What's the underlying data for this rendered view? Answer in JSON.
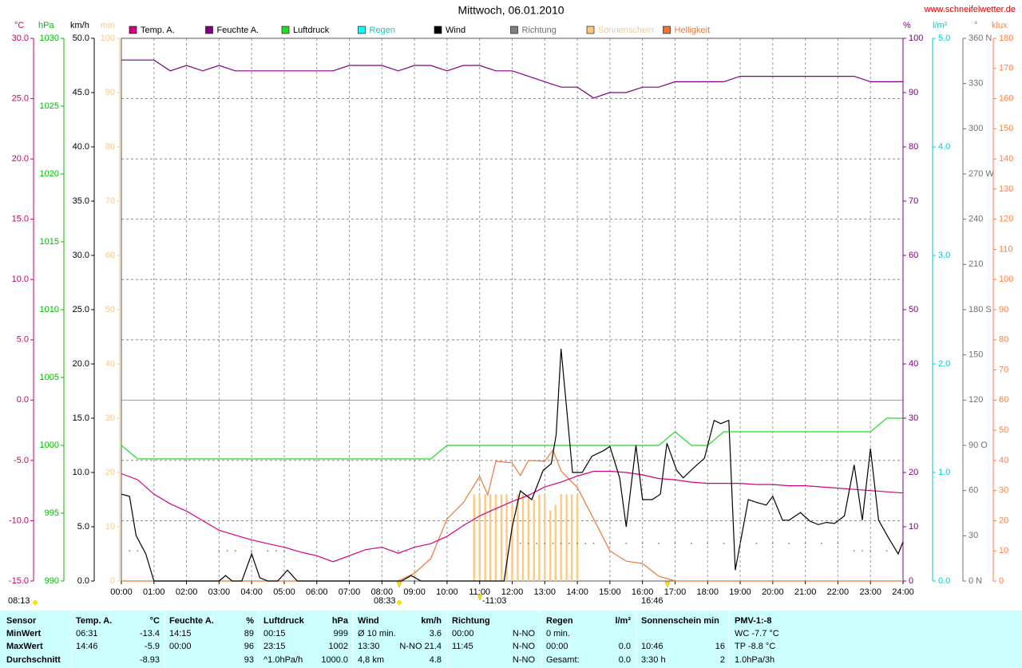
{
  "chart_data": {
    "type": "line",
    "title": "Mittwoch, 06.01.2010",
    "source": "www.schneifelwetter.de",
    "xlim": [
      0,
      24
    ],
    "xticks": [
      {
        "value": 0,
        "label": "00:00"
      },
      {
        "value": 1,
        "label": "01:00"
      },
      {
        "value": 2,
        "label": "02:00"
      },
      {
        "value": 3,
        "label": "03:00"
      },
      {
        "value": 4,
        "label": "04:00"
      },
      {
        "value": 5,
        "label": "05:00"
      },
      {
        "value": 6,
        "label": "06:00"
      },
      {
        "value": 7,
        "label": "07:00"
      },
      {
        "value": 8,
        "label": "08:00"
      },
      {
        "value": 9,
        "label": "09:00"
      },
      {
        "value": 10,
        "label": "10:00"
      },
      {
        "value": 11,
        "label": "11:00"
      },
      {
        "value": 12,
        "label": "12:00"
      },
      {
        "value": 13,
        "label": "13:00"
      },
      {
        "value": 14,
        "label": "14:00"
      },
      {
        "value": 15,
        "label": "15:00"
      },
      {
        "value": 16,
        "label": "16:00"
      },
      {
        "value": 17,
        "label": "17:00"
      },
      {
        "value": 18,
        "label": "18:00"
      },
      {
        "value": 19,
        "label": "19:00"
      },
      {
        "value": 20,
        "label": "20:00"
      },
      {
        "value": 21,
        "label": "21:00"
      },
      {
        "value": 22,
        "label": "22:00"
      },
      {
        "value": 23,
        "label": "23:00"
      },
      {
        "value": 24,
        "label": "24:00"
      }
    ],
    "grid": true,
    "grid_axis": 0,
    "axes": [
      {
        "unit": "°C",
        "color": "#cc0066",
        "lim": [
          -15,
          30
        ],
        "ticks": [
          {
            "value": -15,
            "label": "-15.0"
          },
          {
            "value": -10,
            "label": "-10.0"
          },
          {
            "value": -5,
            "label": "-5.0"
          },
          {
            "value": 0,
            "label": "0.0"
          },
          {
            "value": 5,
            "label": "5.0"
          },
          {
            "value": 10,
            "label": "10.0"
          },
          {
            "value": 15,
            "label": "15.0"
          },
          {
            "value": 20,
            "label": "20.0"
          },
          {
            "value": 25,
            "label": "25.0"
          },
          {
            "value": 30,
            "label": "30.0"
          }
        ]
      },
      {
        "unit": "hPa",
        "color": "#00bb00",
        "lim": [
          990,
          1030
        ],
        "ticks": [
          990,
          995,
          1000,
          1005,
          1010,
          1015,
          1020,
          1025,
          1030
        ]
      },
      {
        "unit": "km/h",
        "color": "#000000",
        "lim": [
          0,
          50
        ],
        "ticks": [
          {
            "value": 0,
            "label": "0.0"
          },
          {
            "value": 5,
            "label": "5.0"
          },
          {
            "value": 10,
            "label": "10.0"
          },
          {
            "value": 15,
            "label": "15.0"
          },
          {
            "value": 20,
            "label": "20.0"
          },
          {
            "value": 25,
            "label": "25.0"
          },
          {
            "value": 30,
            "label": "30.0"
          },
          {
            "value": 35,
            "label": "35.0"
          },
          {
            "value": 40,
            "label": "40.0"
          },
          {
            "value": 45,
            "label": "45.0"
          },
          {
            "value": 50,
            "label": "50.0"
          }
        ]
      },
      {
        "unit": "min",
        "color": "#f5c890",
        "lim": [
          0,
          100
        ],
        "ticks": [
          0,
          10,
          20,
          30,
          40,
          50,
          60,
          70,
          80,
          90,
          100
        ]
      },
      {
        "unit": "%",
        "color": "#800080",
        "lim": [
          0,
          100
        ],
        "ticks": [
          0,
          10,
          20,
          30,
          40,
          50,
          60,
          70,
          80,
          90,
          100
        ]
      },
      {
        "unit": "l/m²",
        "color": "#00cccc",
        "lim": [
          0,
          5
        ],
        "ticks": [
          {
            "value": 0,
            "label": "0.0"
          },
          {
            "value": 1,
            "label": "1.0"
          },
          {
            "value": 2,
            "label": "2.0"
          },
          {
            "value": 3,
            "label": "3.0"
          },
          {
            "value": 4,
            "label": "4.0"
          },
          {
            "value": 5,
            "label": "5.0"
          }
        ]
      },
      {
        "unit": "°",
        "color": "#707070",
        "lim": [
          0,
          360
        ],
        "ticks": [
          {
            "value": 0,
            "label": "0 N"
          },
          30,
          60,
          {
            "value": 90,
            "label": "90 O"
          },
          120,
          150,
          {
            "value": 180,
            "label": "180 S"
          },
          210,
          240,
          {
            "value": 270,
            "label": "270 W"
          },
          300,
          330,
          {
            "value": 360,
            "label": "360 N"
          }
        ]
      },
      {
        "unit": "klux",
        "color": "#ff8040",
        "lim": [
          0,
          180
        ],
        "ticks": [
          0,
          10,
          20,
          30,
          40,
          50,
          60,
          70,
          80,
          90,
          100,
          110,
          120,
          130,
          140,
          150,
          160,
          170,
          180
        ]
      }
    ],
    "x": [
      0,
      0.5,
      1,
      1.5,
      2,
      2.5,
      3,
      3.5,
      4,
      4.5,
      5,
      5.5,
      6,
      6.5,
      7,
      7.5,
      8,
      8.5,
      9,
      9.5,
      10,
      10.5,
      11,
      11.5,
      12,
      12.5,
      13,
      13.5,
      14,
      14.5,
      15,
      15.5,
      16,
      16.5,
      17,
      17.5,
      18,
      18.5,
      19,
      19.5,
      20,
      20.5,
      21,
      21.5,
      22,
      22.5,
      23,
      23.5,
      24
    ],
    "series": [
      {
        "name": "Temp. A.",
        "color": "#d4007a",
        "legend_text_color": "#000000",
        "type": "line",
        "axis": 0,
        "values": [
          -6.1,
          -6.6,
          -7.8,
          -8.6,
          -9.2,
          -10.0,
          -10.8,
          -11.2,
          -11.6,
          -11.9,
          -12.2,
          -12.6,
          -12.9,
          -13.4,
          -12.9,
          -12.4,
          -12.2,
          -12.7,
          -12.2,
          -11.9,
          -11.3,
          -10.4,
          -9.6,
          -9.0,
          -8.4,
          -7.9,
          -7.2,
          -6.8,
          -6.3,
          -5.9,
          -5.9,
          -6.0,
          -6.2,
          -6.5,
          -6.6,
          -6.8,
          -6.9,
          -6.9,
          -6.9,
          -7.0,
          -7.0,
          -7.1,
          -7.1,
          -7.2,
          -7.3,
          -7.4,
          -7.5,
          -7.6,
          -7.7
        ]
      },
      {
        "name": "Feuchte A.",
        "color": "#800080",
        "legend_text_color": "#000000",
        "type": "line",
        "axis": 4,
        "values": [
          96,
          96,
          96,
          94,
          95,
          94,
          95,
          94,
          94,
          94,
          94,
          94,
          94,
          94,
          95,
          95,
          95,
          94,
          95,
          95,
          94,
          95,
          95,
          94,
          94,
          93,
          92,
          91,
          91,
          89,
          90,
          90,
          91,
          91,
          92,
          92,
          92,
          92,
          93,
          93,
          93,
          93,
          93,
          93,
          93,
          93,
          92,
          92,
          92
        ]
      },
      {
        "name": "Luftdruck",
        "color": "#22dd22",
        "legend_text_color": "#000000",
        "type": "line",
        "axis": 1,
        "values": [
          1000,
          999,
          999,
          999,
          999,
          999,
          999,
          999,
          999,
          999,
          999,
          999,
          999,
          999,
          999,
          999,
          999,
          999,
          999,
          999,
          1000,
          1000,
          1000,
          1000,
          1000,
          1000,
          1000,
          1000,
          1000,
          1000,
          1000,
          1000,
          1000,
          1000,
          1001,
          1000,
          1000,
          1001,
          1001,
          1001,
          1001,
          1001,
          1001,
          1001,
          1001,
          1001,
          1001,
          1002,
          1002
        ]
      },
      {
        "name": "Regen",
        "color": "#00ffff",
        "legend_text_color": "#00cccc",
        "type": "line",
        "axis": 5,
        "x": [],
        "values": []
      },
      {
        "name": "Wind",
        "color": "#000000",
        "legend_text_color": "#000000",
        "type": "line",
        "axis": 2,
        "x": [
          0,
          0.25,
          0.45,
          0.75,
          1.0,
          3.0,
          3.2,
          3.4,
          3.7,
          4.0,
          4.25,
          4.5,
          4.8,
          5.1,
          5.4,
          8.6,
          8.9,
          9.2,
          11.75,
          12.0,
          12.25,
          12.6,
          12.95,
          13.2,
          13.35,
          13.5,
          13.7,
          13.85,
          14.15,
          14.45,
          14.8,
          15.0,
          15.3,
          15.5,
          15.8,
          16.0,
          16.3,
          16.55,
          16.75,
          17.05,
          17.25,
          17.6,
          17.9,
          18.2,
          18.4,
          18.65,
          18.85,
          19.25,
          19.55,
          19.8,
          20.0,
          20.3,
          20.5,
          20.85,
          21.15,
          21.4,
          21.65,
          21.9,
          22.2,
          22.5,
          22.75,
          23.0,
          23.25,
          23.55,
          23.85,
          24.0
        ],
        "values": [
          8.0,
          7.8,
          4.2,
          2.5,
          0,
          0,
          0.5,
          0,
          0,
          2.5,
          0.3,
          0,
          0,
          1.0,
          0,
          0,
          0.5,
          0,
          0,
          5.0,
          8.3,
          7.5,
          10.2,
          10.8,
          13.5,
          21.4,
          15,
          10,
          10,
          11.5,
          12,
          12.4,
          9.5,
          5.0,
          12.5,
          7.5,
          7.5,
          8,
          12.7,
          10.2,
          9.5,
          10.5,
          11.3,
          14.8,
          14.5,
          14.8,
          1.0,
          7.5,
          7.2,
          7,
          7.8,
          5.6,
          5.6,
          6.3,
          5.5,
          5.2,
          5.4,
          5.3,
          6.0,
          10.7,
          5.6,
          12.2,
          5.6,
          4.0,
          2.5,
          3.6
        ]
      },
      {
        "name": "Richtung",
        "color": "#808080",
        "legend_text_color": "#707070",
        "type": "dots",
        "axis": 6,
        "x": [
          0.25,
          0.5,
          3.0,
          3.25,
          3.5,
          4.0,
          4.5,
          4.75,
          5.0,
          8.5,
          8.75,
          12.25,
          12.5,
          12.75,
          13.0,
          13.25,
          13.5,
          13.75,
          14.0,
          14.25,
          14.5,
          15.0,
          15.5,
          16.0,
          16.5,
          17.0,
          17.5,
          18.0,
          18.5,
          19.0,
          19.5,
          20.0,
          20.5,
          21.0,
          21.5,
          22.0,
          22.5,
          22.75,
          23.0,
          23.5
        ],
        "values": [
          20,
          20,
          20,
          20,
          20,
          20,
          20,
          20,
          20,
          20,
          20,
          25,
          25,
          25,
          25,
          25,
          25,
          25,
          25,
          25,
          25,
          25,
          25,
          25,
          25,
          25,
          25,
          25,
          25,
          25,
          25,
          25,
          25,
          25,
          25,
          25,
          20,
          20,
          20,
          20
        ]
      },
      {
        "name": "Sonnenschein",
        "color": "#ffc880",
        "legend_text_color": "#f5c890",
        "type": "bar",
        "axis": 3,
        "x": [
          10.83,
          11.0,
          11.17,
          11.33,
          11.5,
          11.67,
          11.83,
          12.0,
          12.17,
          12.33,
          12.5,
          12.67,
          12.83,
          13.0,
          13.17,
          13.33,
          13.5,
          13.67,
          13.83,
          14.0
        ],
        "values": [
          16,
          16,
          16,
          16,
          16,
          16,
          16,
          14,
          16,
          16,
          16,
          15,
          16,
          16,
          13,
          14,
          16,
          16,
          16,
          16
        ]
      },
      {
        "name": "Helligkeit",
        "color": "#ee7733",
        "legend_text_color": "#ee7733",
        "type": "line",
        "axis": 7,
        "x": [
          0,
          8.5,
          9.0,
          9.5,
          10.0,
          10.5,
          11.0,
          11.25,
          11.5,
          12.0,
          12.25,
          12.5,
          13.0,
          13.25,
          13.5,
          14.0,
          14.5,
          15.0,
          15.5,
          16.0,
          16.5,
          17.0,
          24.0
        ],
        "values": [
          0,
          0,
          2.6,
          7.4,
          20.6,
          26,
          34.7,
          28.6,
          39.7,
          39.2,
          35,
          40,
          39.7,
          43.4,
          36.5,
          31,
          20.6,
          10,
          6.6,
          5.8,
          1.6,
          0,
          0
        ]
      }
    ],
    "annotations": [
      "08:13",
      "08:33",
      "-11:03",
      "16:46"
    ]
  },
  "table": {
    "headers": [
      {
        "left": "Sensor"
      },
      {
        "left": "Temp. A.",
        "right": "°C"
      },
      {
        "left": "Feuchte A.",
        "right": "%"
      },
      {
        "left": "Luftdruck",
        "right": "hPa"
      },
      {
        "left": "Wind",
        "right": "km/h"
      },
      {
        "left": "Richtung"
      },
      {
        "left": "Regen",
        "right": "l/m²"
      },
      {
        "left": "Sonnenschein min"
      },
      {
        "left": "PMV-1:-8"
      }
    ],
    "rows": [
      {
        "label": "MinWert",
        "cells": [
          {
            "left": "06:31",
            "right": "-13.4"
          },
          {
            "left": "14:15",
            "right": "89"
          },
          {
            "left": "00:15",
            "right": "999"
          },
          {
            "left": "Ø 10 min.",
            "right": "3.6"
          },
          {
            "left": "00:00",
            "right": "N-NO"
          },
          {
            "left": "0 min."
          },
          null,
          {
            "left": "WC -7.7 °C"
          }
        ]
      },
      {
        "label": "MaxWert",
        "cells": [
          {
            "left": "14:46",
            "right": "-5.9"
          },
          {
            "left": "00:00",
            "right": "96"
          },
          {
            "left": "23:15",
            "right": "1002"
          },
          {
            "left": "13:30",
            "right": "N-NO 21.4"
          },
          {
            "left": "11:45",
            "right": "N-NO"
          },
          {
            "left": "00:00",
            "right": "0.0"
          },
          {
            "left": "10:46",
            "right": "16"
          },
          {
            "left": "TP -8.8 °C"
          }
        ]
      },
      {
        "label": "Durchschnitt",
        "cells": [
          {
            "right": "-8.93"
          },
          {
            "right": "93"
          },
          {
            "left": "^1.0hPa/h",
            "right": "1000.0"
          },
          {
            "left": "4,8 km",
            "right": "4.8"
          },
          {
            "right": "N-NO"
          },
          {
            "left": "Gesamt:",
            "right": "0.0"
          },
          {
            "left": "3:30 h",
            "right": "2"
          },
          {
            "left": "1.0hPa/3h"
          }
        ]
      }
    ]
  }
}
